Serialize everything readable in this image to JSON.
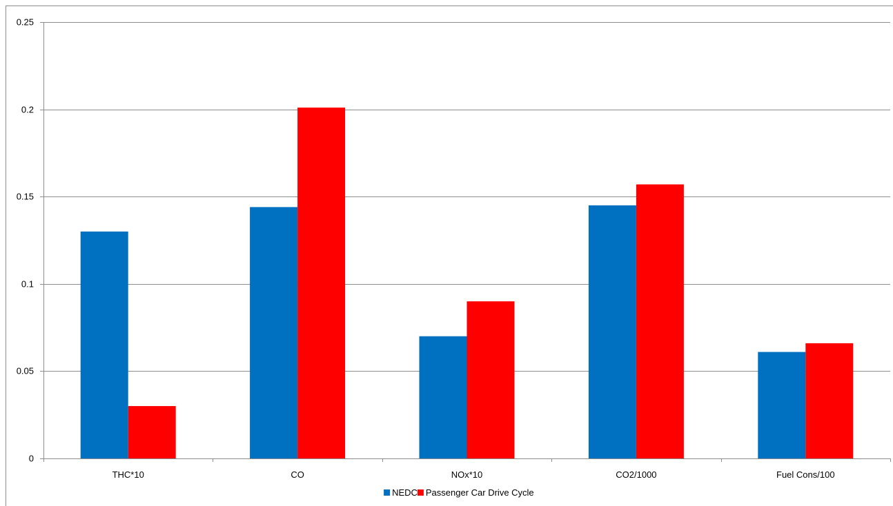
{
  "chart_data": {
    "type": "bar",
    "categories": [
      "THC*10",
      "CO",
      "NOx*10",
      "CO2/1000",
      "Fuel Cons/100"
    ],
    "series": [
      {
        "name": "NEDC",
        "color": "#0070c0",
        "values": [
          0.13,
          0.144,
          0.07,
          0.145,
          0.061
        ]
      },
      {
        "name": "Passenger Car Drive Cycle",
        "color": "#ff0000",
        "values": [
          0.03,
          0.201,
          0.09,
          0.157,
          0.066
        ]
      }
    ],
    "ylim": [
      0,
      0.25
    ],
    "yticks": [
      0,
      0.05,
      0.1,
      0.15,
      0.2,
      0.25
    ],
    "ytick_labels": [
      "0",
      "0.05",
      "0.1",
      "0.15",
      "0.2",
      "0.25"
    ],
    "grid": true,
    "legend_position": "bottom"
  }
}
